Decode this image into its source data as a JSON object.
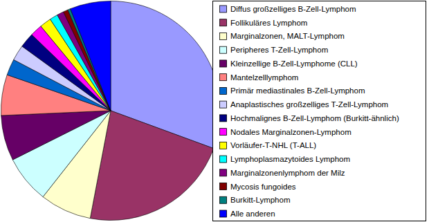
{
  "chart_data": {
    "type": "pie",
    "categories": [
      "Diffus großzelliges B-Zell-Lymphom",
      "Follikuläres Lymphom",
      "Marginalzonen, MALT-Lymphom",
      "Peripheres T-Zell-Lymphom",
      "Kleinzellige B-Zell-Lymphome (CLL)",
      "Mantelzelllymphom",
      "Primär mediastinales B-Zell-Lymphom",
      "Anaplastisches großzelliges T-Zell-Lymphom",
      "Hochmalignes B-Zell-Lymphom (Burkitt-ähnlich)",
      "Nodales Marginalzonen-Lymphom",
      "Vorläufer-T-NHL (T-ALL)",
      "Lymphoplasmazytoides Lymphom",
      "Marginalzonenlymphom der Milz",
      "Mycosis fungoides",
      "Burkitt-Lymphom",
      "Alle anderen"
    ],
    "values": [
      30.6,
      22.4,
      7.6,
      7.0,
      6.7,
      6.0,
      2.4,
      2.3,
      2.2,
      1.8,
      1.7,
      1.2,
      1.0,
      0.7,
      0.4,
      6.0
    ],
    "colors": [
      "#9999ff",
      "#993366",
      "#ffffcc",
      "#ccffff",
      "#660066",
      "#ff8080",
      "#0066cc",
      "#ccccff",
      "#000080",
      "#ff00ff",
      "#ffff00",
      "#00ffff",
      "#800080",
      "#800000",
      "#008080",
      "#0000ff"
    ],
    "legend": "right"
  }
}
